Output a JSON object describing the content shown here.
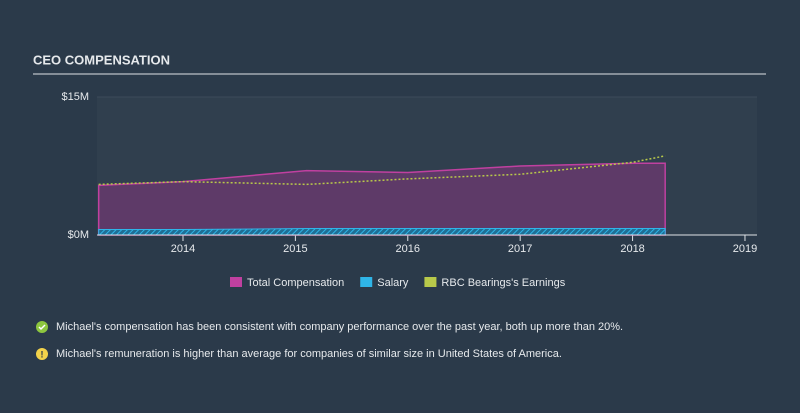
{
  "chart_data": {
    "type": "area",
    "title": "CEO COMPENSATION",
    "x": [
      2013.25,
      2014,
      2015.1,
      2016,
      2017,
      2018,
      2018.29
    ],
    "series": [
      {
        "name": "Total Compensation",
        "color": "#c040a0",
        "values": [
          5.4,
          5.8,
          7.0,
          6.8,
          7.5,
          7.8,
          7.8
        ]
      },
      {
        "name": "Salary",
        "color": "#2fb5e8",
        "values": [
          0.6,
          0.6,
          0.7,
          0.7,
          0.7,
          0.7,
          0.7
        ]
      },
      {
        "name": "RBC Bearings's Earnings",
        "color": "#b8c94a",
        "values": [
          5.5,
          5.8,
          5.5,
          6.1,
          6.6,
          7.9,
          8.6
        ]
      }
    ],
    "xlim": [
      2013.235,
      2019.107
    ],
    "xticks": [
      2014,
      2015,
      2016,
      2017,
      2018,
      2019
    ],
    "ylim": [
      0,
      15
    ],
    "yticks": [
      {
        "value": 0,
        "label": "$0M"
      },
      {
        "value": 15,
        "label": "$15M"
      }
    ]
  },
  "notes": [
    "Michael's compensation has been consistent with company performance over the past year, both up more than 20%.",
    "Michael's remuneration is higher than average for companies of similar size in United States of America."
  ]
}
